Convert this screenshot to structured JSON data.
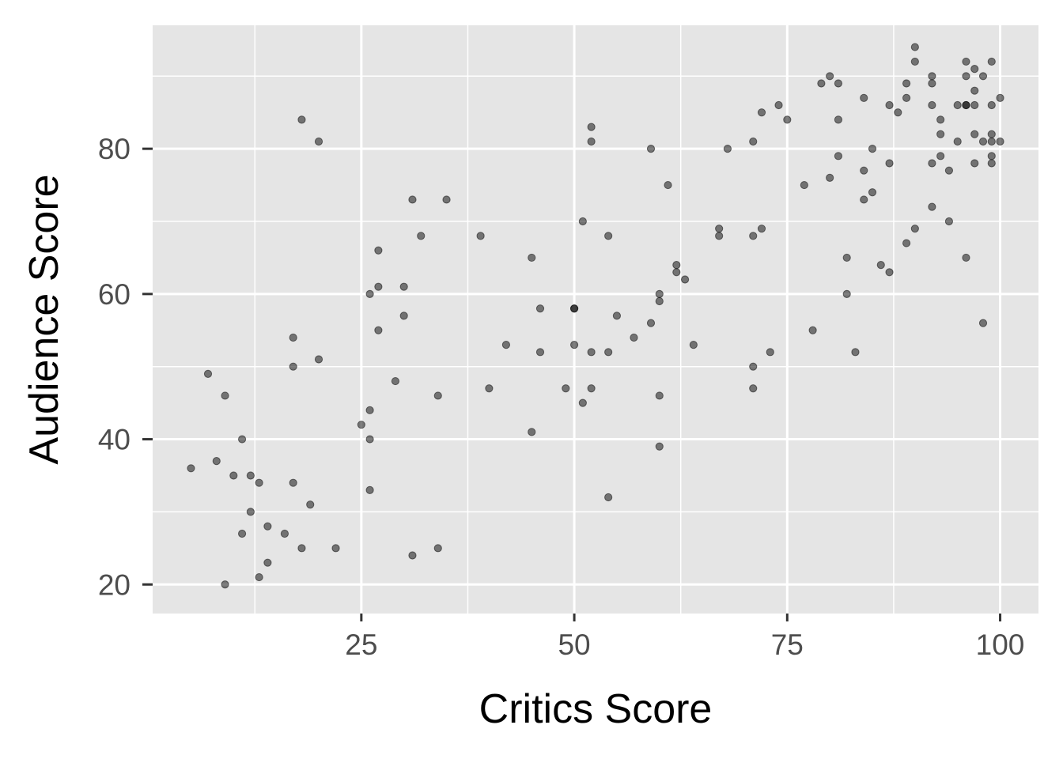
{
  "chart_data": {
    "type": "scatter",
    "title": "",
    "xlabel": "Critics Score",
    "ylabel": "Audience Score",
    "xlim": [
      0.5,
      104.5
    ],
    "ylim": [
      16,
      97
    ],
    "x_ticks": [
      25,
      50,
      75,
      100
    ],
    "y_ticks": [
      20,
      40,
      60,
      80
    ],
    "x_minor_ticks": [
      12.5,
      37.5,
      62.5,
      87.5
    ],
    "y_minor_ticks": [
      30,
      50,
      70,
      90
    ],
    "grid": true,
    "legend": "none",
    "point_color": "#000000",
    "point_alpha": 0.5,
    "panel_background": "#e5e5e5",
    "points": [
      [
        5,
        36
      ],
      [
        7,
        49
      ],
      [
        8,
        37
      ],
      [
        9,
        46
      ],
      [
        9,
        20
      ],
      [
        10,
        35
      ],
      [
        11,
        40
      ],
      [
        11,
        27
      ],
      [
        12,
        35
      ],
      [
        12,
        30
      ],
      [
        13,
        34
      ],
      [
        13,
        21
      ],
      [
        14,
        28
      ],
      [
        14,
        23
      ],
      [
        16,
        27
      ],
      [
        17,
        54
      ],
      [
        17,
        50
      ],
      [
        17,
        34
      ],
      [
        18,
        84
      ],
      [
        18,
        25
      ],
      [
        19,
        31
      ],
      [
        20,
        81
      ],
      [
        20,
        51
      ],
      [
        22,
        25
      ],
      [
        25,
        42
      ],
      [
        26,
        60
      ],
      [
        26,
        44
      ],
      [
        26,
        40
      ],
      [
        26,
        33
      ],
      [
        27,
        66
      ],
      [
        27,
        61
      ],
      [
        27,
        55
      ],
      [
        29,
        48
      ],
      [
        30,
        61
      ],
      [
        30,
        57
      ],
      [
        31,
        73
      ],
      [
        31,
        24
      ],
      [
        32,
        68
      ],
      [
        34,
        46
      ],
      [
        34,
        25
      ],
      [
        35,
        73
      ],
      [
        39,
        68
      ],
      [
        40,
        47
      ],
      [
        42,
        53
      ],
      [
        45,
        65
      ],
      [
        45,
        41
      ],
      [
        46,
        58
      ],
      [
        46,
        52
      ],
      [
        49,
        47
      ],
      [
        50,
        58
      ],
      [
        50,
        58
      ],
      [
        50,
        53
      ],
      [
        51,
        70
      ],
      [
        51,
        45
      ],
      [
        52,
        83
      ],
      [
        52,
        81
      ],
      [
        52,
        52
      ],
      [
        52,
        47
      ],
      [
        54,
        68
      ],
      [
        54,
        52
      ],
      [
        54,
        32
      ],
      [
        55,
        57
      ],
      [
        57,
        54
      ],
      [
        59,
        80
      ],
      [
        59,
        56
      ],
      [
        60,
        60
      ],
      [
        60,
        59
      ],
      [
        60,
        46
      ],
      [
        60,
        39
      ],
      [
        61,
        75
      ],
      [
        62,
        64
      ],
      [
        62,
        63
      ],
      [
        63,
        62
      ],
      [
        64,
        53
      ],
      [
        67,
        69
      ],
      [
        67,
        68
      ],
      [
        68,
        80
      ],
      [
        71,
        81
      ],
      [
        71,
        68
      ],
      [
        71,
        50
      ],
      [
        71,
        47
      ],
      [
        72,
        85
      ],
      [
        72,
        69
      ],
      [
        73,
        52
      ],
      [
        74,
        86
      ],
      [
        75,
        84
      ],
      [
        77,
        75
      ],
      [
        78,
        55
      ],
      [
        79,
        89
      ],
      [
        80,
        90
      ],
      [
        80,
        76
      ],
      [
        81,
        89
      ],
      [
        81,
        84
      ],
      [
        81,
        79
      ],
      [
        82,
        65
      ],
      [
        82,
        60
      ],
      [
        83,
        52
      ],
      [
        84,
        87
      ],
      [
        84,
        77
      ],
      [
        84,
        73
      ],
      [
        85,
        80
      ],
      [
        85,
        74
      ],
      [
        86,
        64
      ],
      [
        87,
        86
      ],
      [
        87,
        78
      ],
      [
        87,
        63
      ],
      [
        88,
        85
      ],
      [
        89,
        89
      ],
      [
        89,
        87
      ],
      [
        89,
        67
      ],
      [
        90,
        94
      ],
      [
        90,
        92
      ],
      [
        90,
        69
      ],
      [
        92,
        90
      ],
      [
        92,
        89
      ],
      [
        92,
        86
      ],
      [
        92,
        78
      ],
      [
        92,
        72
      ],
      [
        93,
        84
      ],
      [
        93,
        82
      ],
      [
        93,
        79
      ],
      [
        94,
        77
      ],
      [
        94,
        70
      ],
      [
        95,
        86
      ],
      [
        95,
        81
      ],
      [
        96,
        92
      ],
      [
        96,
        90
      ],
      [
        96,
        86
      ],
      [
        96,
        86
      ],
      [
        96,
        65
      ],
      [
        97,
        91
      ],
      [
        97,
        88
      ],
      [
        97,
        86
      ],
      [
        97,
        82
      ],
      [
        97,
        78
      ],
      [
        98,
        90
      ],
      [
        98,
        81
      ],
      [
        98,
        56
      ],
      [
        99,
        92
      ],
      [
        99,
        86
      ],
      [
        99,
        82
      ],
      [
        99,
        81
      ],
      [
        99,
        79
      ],
      [
        99,
        78
      ],
      [
        100,
        87
      ],
      [
        100,
        81
      ]
    ]
  }
}
